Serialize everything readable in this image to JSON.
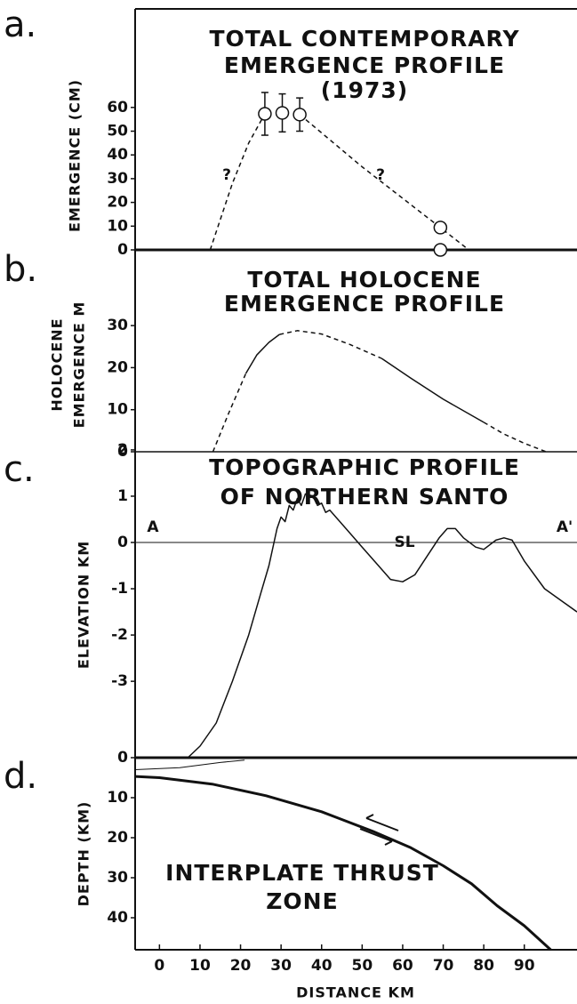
{
  "chart_data": [
    {
      "type": "line",
      "panel_label": "a.",
      "title_lines": [
        "TOTAL CONTEMPORARY",
        "EMERGENCE PROFILE",
        "(1973)"
      ],
      "y_label": [
        "EMERGENCE (CM)"
      ],
      "xlim": [
        -6,
        103
      ],
      "ylim": [
        0,
        101.5
      ],
      "yticks": [
        0,
        10,
        20,
        30,
        40,
        50,
        60
      ],
      "annotations": [
        "?",
        "?"
      ],
      "series": [
        {
          "color": "#111",
          "dash": true,
          "width": 1.5,
          "x": [
            12.5,
            18,
            22,
            26,
            null,
            34.6,
            50,
            69.3,
            76.3
          ],
          "values": [
            0,
            28,
            45,
            57.3,
            null,
            57,
            35,
            9.4,
            0
          ]
        },
        {
          "color": "#111",
          "markers": true,
          "x": [
            26,
            30.3,
            34.6,
            69.3,
            69.3
          ],
          "values": [
            57.3,
            57.7,
            57,
            9.4,
            0
          ],
          "errors": [
            9,
            8,
            7,
            null,
            null
          ]
        }
      ]
    },
    {
      "type": "line",
      "panel_label": "b.",
      "title_lines": [
        "TOTAL HOLOCENE",
        "EMERGENCE PROFILE"
      ],
      "y_label": [
        "HOLOCENE",
        "EMERGENCE M"
      ],
      "xlim": [
        -6,
        103
      ],
      "ylim": [
        0,
        48
      ],
      "yticks": [
        0,
        10,
        20,
        30
      ],
      "series": [
        {
          "color": "#111",
          "dash": true,
          "width": 1.5,
          "x": [
            13.2,
            17,
            21.3,
            null,
            29.6,
            34,
            40,
            47,
            54.8,
            null,
            80,
            85,
            90,
            95.4
          ],
          "values": [
            0,
            9,
            18.6,
            null,
            27.9,
            28.8,
            28,
            25.5,
            22.2,
            null,
            7,
            4.2,
            2,
            0
          ]
        },
        {
          "color": "#111",
          "dash": false,
          "width": 1.5,
          "x": [
            21.3,
            24,
            27,
            29.6,
            null,
            54.8,
            62,
            70,
            80
          ],
          "values": [
            18.6,
            23,
            26,
            27.9,
            null,
            22.2,
            17.5,
            12.5,
            7
          ]
        }
      ]
    },
    {
      "type": "line",
      "panel_label": "c.",
      "title_lines": [
        "TOPOGRAPHIC PROFILE",
        "OF NORTHERN SANTO"
      ],
      "y_label": [
        "ELEVATION KM"
      ],
      "xlim": [
        -6,
        103
      ],
      "ylim": [
        -4.65,
        1.96
      ],
      "yticks": [
        2,
        1,
        0,
        -1,
        -2,
        -3
      ],
      "annotations": [
        "A",
        "A'",
        "SL"
      ],
      "series": [
        {
          "color": "#111",
          "dash": false,
          "width": 1.5,
          "x": [
            7,
            10,
            14,
            18,
            22,
            25,
            27,
            29,
            30,
            31,
            32,
            33,
            34,
            35,
            36,
            38,
            39,
            40,
            41,
            42,
            44,
            47,
            50,
            54,
            57,
            60,
            63,
            66,
            69,
            71,
            73,
            75,
            78,
            80,
            83,
            85,
            87,
            90,
            95,
            103
          ],
          "values": [
            -4.65,
            -4.4,
            -3.9,
            -3,
            -2,
            -1.1,
            -0.5,
            0.3,
            0.55,
            0.45,
            0.8,
            0.7,
            0.95,
            0.8,
            1.05,
            1,
            0.8,
            0.85,
            0.65,
            0.7,
            0.5,
            0.2,
            -0.1,
            -0.5,
            -0.8,
            -0.85,
            -0.7,
            -0.3,
            0.1,
            0.3,
            0.3,
            0.1,
            -0.1,
            -0.15,
            0.05,
            0.1,
            0.05,
            -0.4,
            -1,
            -1.5
          ]
        }
      ]
    },
    {
      "type": "line",
      "panel_label": "d.",
      "text_lines": [
        "INTERPLATE THRUST",
        "ZONE"
      ],
      "y_label": [
        "DEPTH (KM)"
      ],
      "x_label": "DISTANCE KM",
      "xlim": [
        -6,
        103
      ],
      "ylim": [
        0,
        48
      ],
      "inverted": true,
      "yticks": [
        0,
        10,
        20,
        30,
        40
      ],
      "xticks": [
        0,
        10,
        20,
        30,
        40,
        50,
        60,
        70,
        80,
        90
      ],
      "series": [
        {
          "color": "#111",
          "dash": false,
          "width": 3,
          "x": [
            -6,
            0,
            13,
            26.3,
            40,
            52.6,
            62,
            70,
            77,
            83.3,
            90,
            96.5
          ],
          "values": [
            4.7,
            5,
            6.6,
            9.5,
            13.5,
            18.4,
            22.5,
            27,
            31.5,
            37,
            42,
            48
          ]
        },
        {
          "color": "#111",
          "dash": false,
          "width": 1,
          "x": [
            -6,
            5,
            15,
            21
          ],
          "values": [
            3,
            2.5,
            1.2,
            0.6
          ]
        }
      ]
    }
  ]
}
